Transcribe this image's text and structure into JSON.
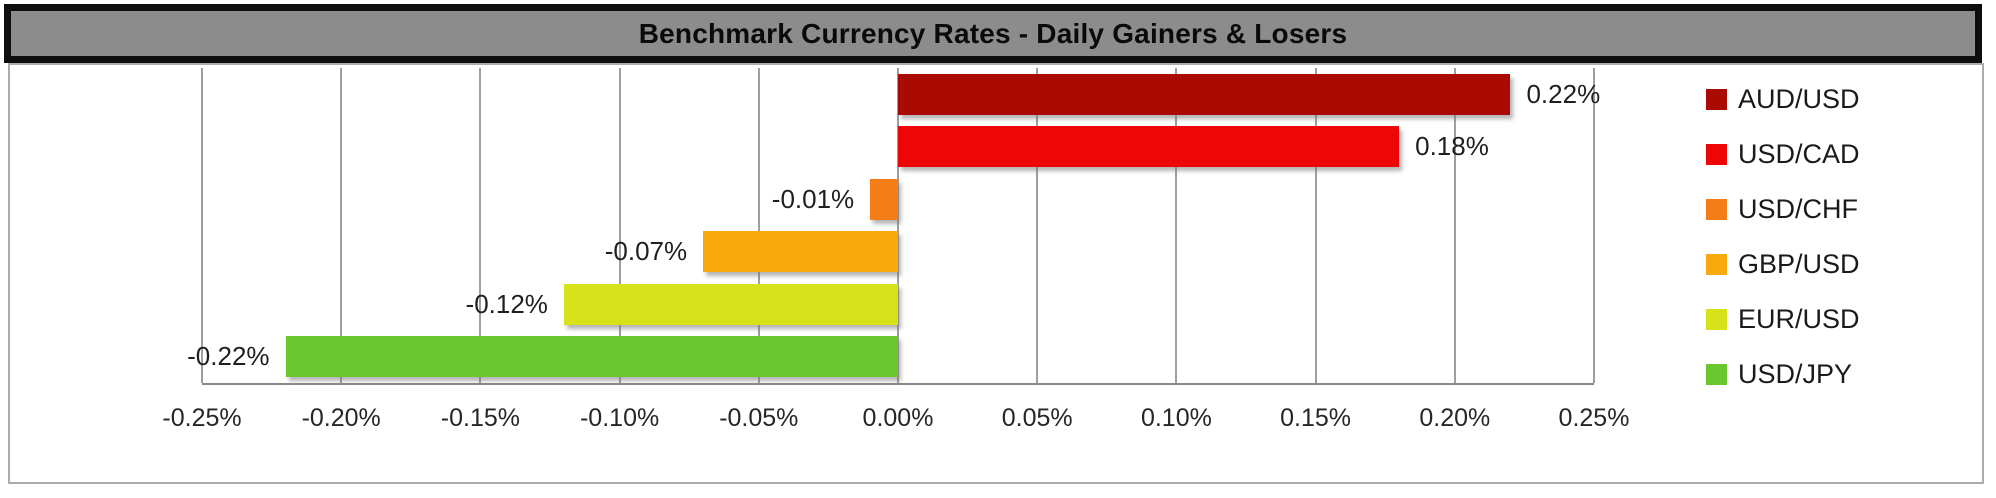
{
  "title": "Benchmark Currency Rates - Daily Gainers & Losers",
  "colors": {
    "banner_bg": "#8C8C8C",
    "banner_border": "#0E0E0E",
    "banner_text": "#0A0A0A",
    "chart_border": "#ABABAB",
    "gridline": "#9E9E9E",
    "axis_line": "#8A8A8A",
    "label_text": "#1F1F1F",
    "background": "#FFFFFF"
  },
  "chart_data": {
    "type": "bar",
    "orientation": "horizontal",
    "title": "Benchmark Currency Rates - Daily Gainers & Losers",
    "categories": [
      "AUD/USD",
      "USD/CAD",
      "USD/CHF",
      "GBP/USD",
      "EUR/USD",
      "USD/JPY"
    ],
    "values": [
      0.22,
      0.18,
      -0.01,
      -0.07,
      -0.12,
      -0.22
    ],
    "value_labels": [
      "0.22%",
      "0.18%",
      "-0.01%",
      "-0.07%",
      "-0.12%",
      "-0.22%"
    ],
    "series_colors": [
      "#A90B02",
      "#EE0505",
      "#F57D17",
      "#F8A90D",
      "#D7E21B",
      "#6AC72F"
    ],
    "x_tick_labels": [
      "-0.25%",
      "-0.20%",
      "-0.15%",
      "-0.10%",
      "-0.05%",
      "0.00%",
      "0.05%",
      "0.10%",
      "0.15%",
      "0.20%",
      "0.25%"
    ],
    "x_tick_values": [
      -0.25,
      -0.2,
      -0.15,
      -0.1,
      -0.05,
      0,
      0.05,
      0.1,
      0.15,
      0.2,
      0.25
    ],
    "xlim": [
      -0.25,
      0.25
    ],
    "xlabel": "",
    "ylabel": "",
    "grid": "vertical",
    "legend_position": "right",
    "legend": [
      "AUD/USD",
      "USD/CAD",
      "USD/CHF",
      "GBP/USD",
      "EUR/USD",
      "USD/JPY"
    ]
  }
}
